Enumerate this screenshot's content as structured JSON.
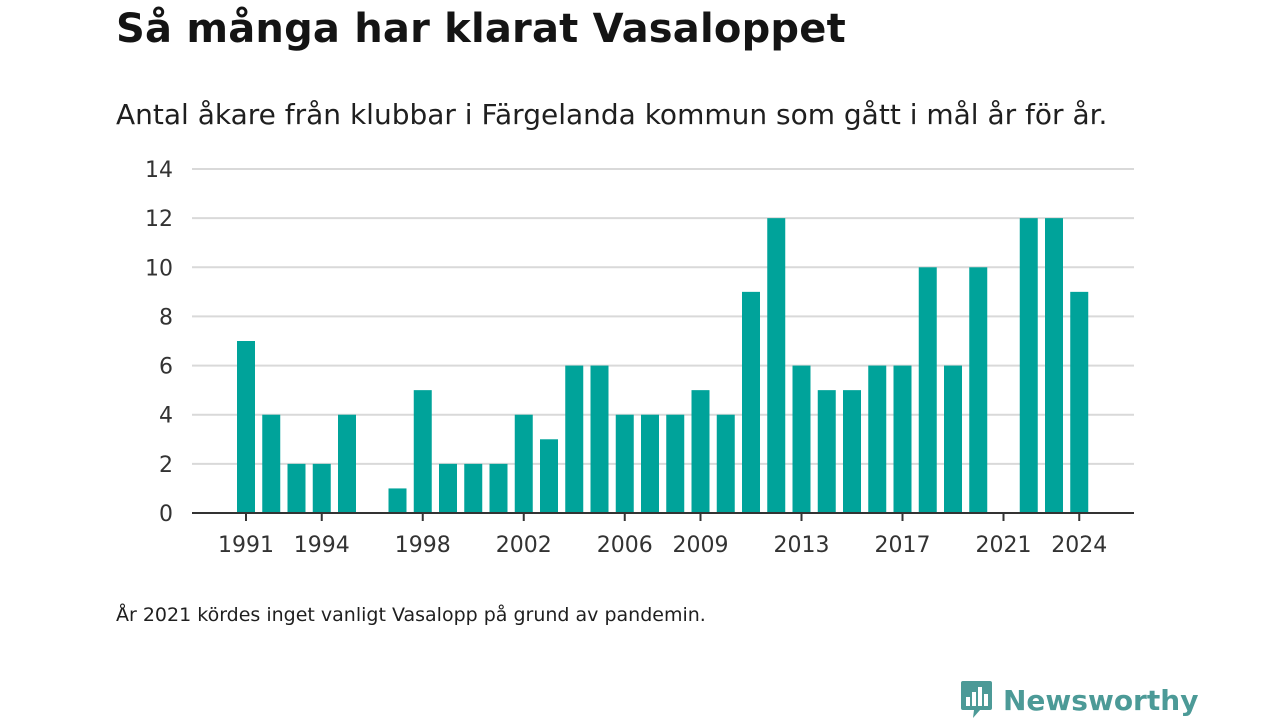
{
  "header": {
    "title": "Så många har klarat Vasaloppet",
    "subtitle": "Antal åkare från klubbar i Färgelanda kommun som gått i mål år för år."
  },
  "footnote": "År 2021 kördes inget vanligt Vasalopp på grund av pandemin.",
  "brand": {
    "name": "Newsworthy",
    "icon": "newsworthy-logo-icon",
    "color": "#4c9a97"
  },
  "colors": {
    "bar": "#00a39a",
    "grid": "#d9d9d9",
    "axis": "#333333"
  },
  "chart_data": {
    "type": "bar",
    "x": [
      1991,
      1992,
      1993,
      1994,
      1995,
      1996,
      1997,
      1998,
      1999,
      2000,
      2001,
      2002,
      2003,
      2004,
      2005,
      2006,
      2007,
      2008,
      2009,
      2010,
      2011,
      2012,
      2013,
      2014,
      2015,
      2016,
      2017,
      2018,
      2019,
      2020,
      2021,
      2022,
      2023,
      2024
    ],
    "values": [
      7,
      4,
      2,
      2,
      4,
      0,
      1,
      5,
      2,
      2,
      2,
      4,
      3,
      6,
      6,
      4,
      4,
      4,
      5,
      4,
      9,
      12,
      6,
      5,
      5,
      6,
      6,
      10,
      6,
      10,
      0,
      12,
      12,
      9
    ],
    "x_tick_labels": [
      "1991",
      "1994",
      "1998",
      "2002",
      "2006",
      "2009",
      "2013",
      "2017",
      "2021",
      "2024"
    ],
    "y_ticks": [
      0,
      2,
      4,
      6,
      8,
      10,
      12,
      14
    ],
    "ylim": [
      0,
      14
    ],
    "grid": true
  }
}
